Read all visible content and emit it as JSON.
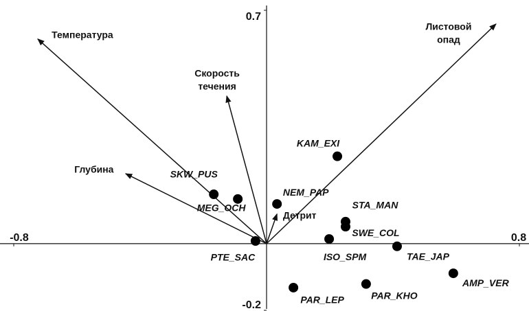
{
  "chart_data": {
    "type": "biplot",
    "xlim": [
      -0.8,
      0.8
    ],
    "ylim": [
      -0.2,
      0.7
    ],
    "xticks": [
      -0.8,
      0.8
    ],
    "yticks": [
      0.7,
      -0.2
    ],
    "sites": [
      {
        "label": "SKW_PUS",
        "x": -0.167,
        "y": 0.148
      },
      {
        "label": "MEG_OCH",
        "x": -0.091,
        "y": 0.134
      },
      {
        "label": "PTE_SAC",
        "x": -0.035,
        "y": 0.008
      },
      {
        "label": "NEM_PAP",
        "x": 0.033,
        "y": 0.119
      },
      {
        "label": "KAM_EXI",
        "x": 0.224,
        "y": 0.262
      },
      {
        "label": "STA_MAN",
        "x": 0.25,
        "y": 0.066
      },
      {
        "label": "SWE_COL",
        "x": 0.25,
        "y": 0.051
      },
      {
        "label": "ISO_SPM",
        "x": 0.198,
        "y": 0.014
      },
      {
        "label": "TAE_JAP",
        "x": 0.413,
        "y": -0.008
      },
      {
        "label": "AMP_VER",
        "x": 0.591,
        "y": -0.089
      },
      {
        "label": "PAR_KHO",
        "x": 0.315,
        "y": -0.121
      },
      {
        "label": "PAR_LEP",
        "x": 0.085,
        "y": -0.132
      }
    ],
    "vectors": [
      {
        "label": [
          "Температура"
        ],
        "x": -0.724,
        "y": 0.614
      },
      {
        "label": [
          "Скорость",
          "течения"
        ],
        "x": -0.126,
        "y": 0.443
      },
      {
        "label": [
          "Глубина"
        ],
        "x": -0.446,
        "y": 0.21
      },
      {
        "label": [
          "Детрит"
        ],
        "x": 0.033,
        "y": 0.089
      },
      {
        "label": [
          "Листовой",
          "опад"
        ],
        "x": 0.726,
        "y": 0.659
      }
    ]
  }
}
